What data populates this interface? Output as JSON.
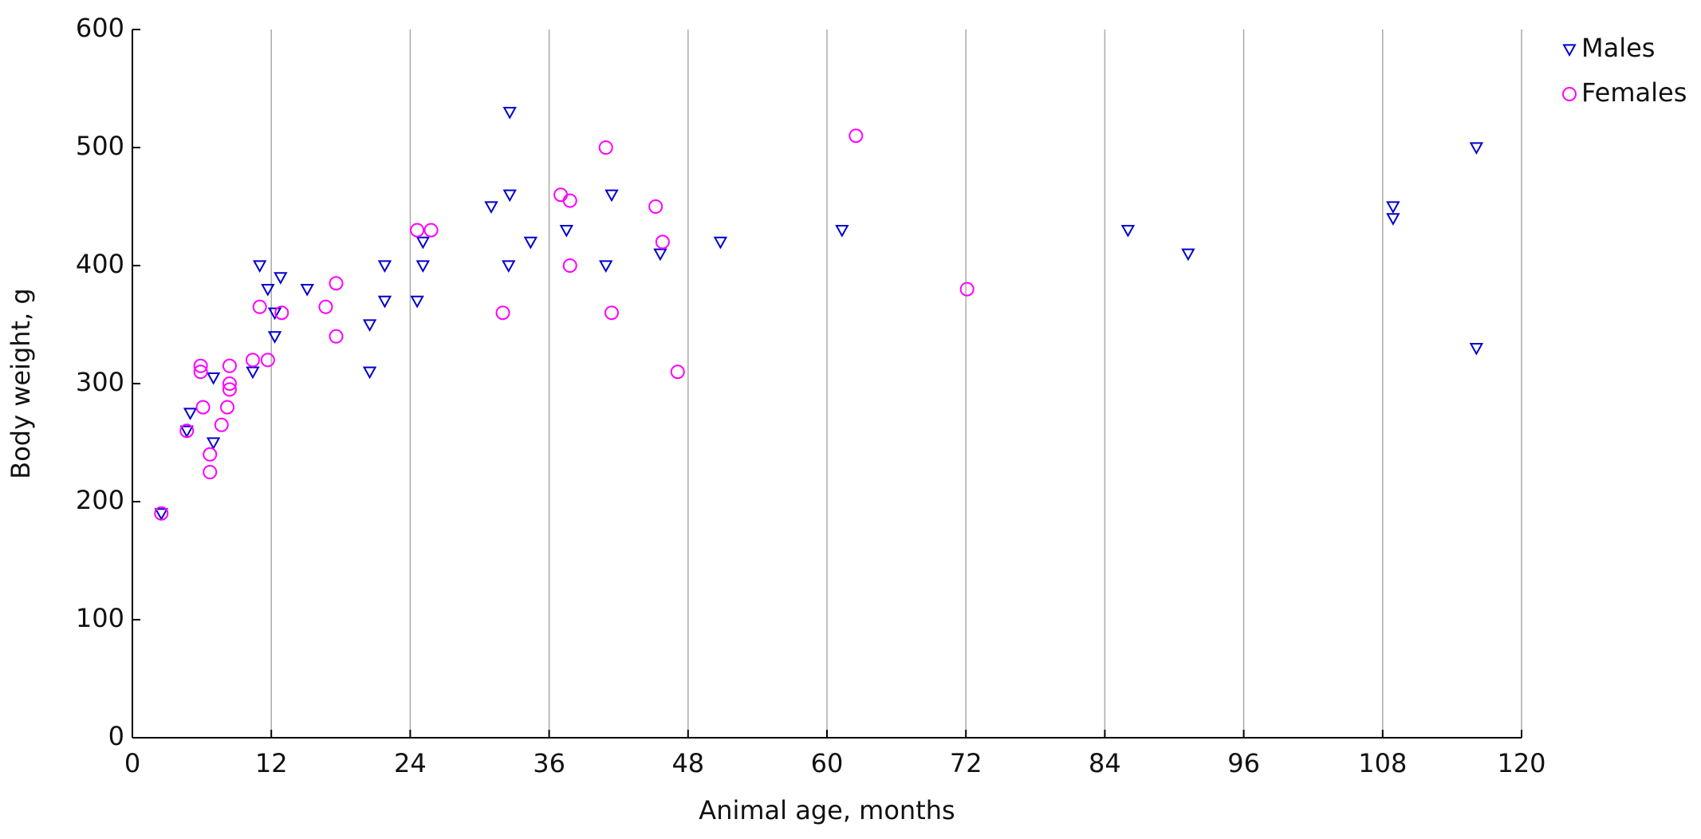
{
  "chart_data": {
    "type": "scatter",
    "x_label": "Animal age, months",
    "y_label": "Body weight, g",
    "xlim": [
      0,
      120
    ],
    "xticks": [
      0,
      12,
      24,
      36,
      48,
      60,
      72,
      84,
      96,
      108,
      120
    ],
    "ylim": [
      0,
      600
    ],
    "yticks": [
      0,
      100,
      200,
      300,
      400,
      500,
      600
    ],
    "grid": "x",
    "legend": "top-right",
    "series": [
      {
        "name": "Males",
        "color": "#0000cc",
        "marker": "triangle-down",
        "x": [
          2.5,
          4.7,
          5.0,
          7.0,
          7.0,
          10.4,
          11.0,
          11.7,
          12.3,
          12.3,
          12.8,
          15.1,
          20.5,
          20.5,
          21.8,
          21.8,
          24.6,
          25.1,
          25.1,
          31.0,
          32.6,
          32.6,
          32.5,
          34.4,
          37.5,
          40.9,
          41.4,
          45.6,
          50.8,
          61.3,
          86.0,
          91.2,
          108.9,
          108.9,
          116.1,
          116.1
        ],
        "values": [
          190,
          260,
          275,
          305,
          250,
          310,
          400,
          380,
          360,
          340,
          390,
          380,
          350,
          310,
          400,
          370,
          370,
          400,
          420,
          450,
          530,
          460,
          400,
          420,
          430,
          400,
          460,
          410,
          420,
          430,
          430,
          410,
          450,
          440,
          500,
          330
        ]
      },
      {
        "name": "Females",
        "color": "#ff00ff",
        "marker": "circle",
        "x": [
          2.5,
          4.7,
          5.9,
          5.9,
          6.1,
          6.7,
          6.7,
          7.7,
          8.2,
          8.4,
          8.4,
          8.4,
          10.4,
          11.0,
          11.7,
          12.9,
          16.7,
          17.6,
          17.6,
          24.6,
          25.8,
          32.0,
          37.0,
          37.8,
          37.8,
          40.9,
          41.4,
          45.2,
          45.8,
          47.1,
          62.5,
          72.1
        ],
        "values": [
          190,
          260,
          315,
          310,
          280,
          240,
          225,
          265,
          280,
          300,
          295,
          315,
          320,
          365,
          320,
          360,
          365,
          385,
          340,
          430,
          430,
          360,
          460,
          455,
          400,
          500,
          360,
          450,
          420,
          310,
          510,
          380
        ]
      }
    ]
  }
}
